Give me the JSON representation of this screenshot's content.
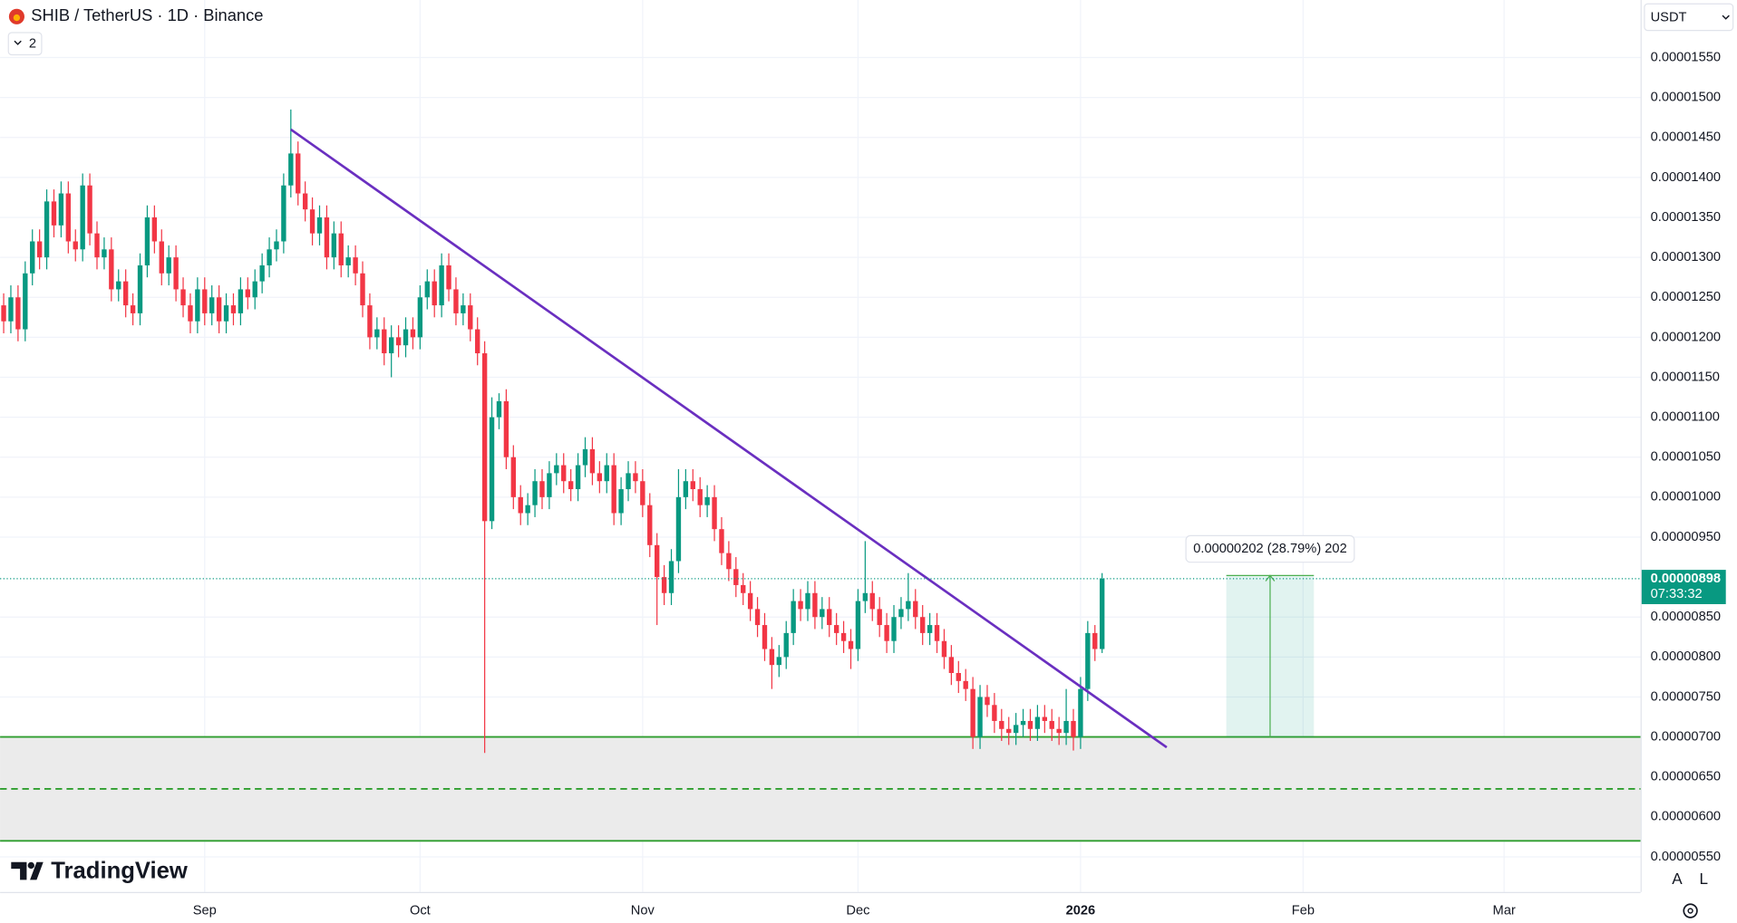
{
  "chart_data": {
    "type": "candlestick",
    "title": "SHIB / TetherUS · 1D · Binance",
    "up_color": "#089981",
    "down_color": "#f23645",
    "xlim": [
      -0.5,
      228
    ],
    "xticks": [
      {
        "value": 28,
        "label": "Sep"
      },
      {
        "value": 58,
        "label": "Oct"
      },
      {
        "value": 89,
        "label": "Nov"
      },
      {
        "value": 119,
        "label": "Dec"
      },
      {
        "value": 150,
        "label": "2026"
      },
      {
        "value": 181,
        "label": "Feb"
      },
      {
        "value": 209,
        "label": "Mar"
      }
    ],
    "ylim": [
      5.06e-06,
      1.622e-05
    ],
    "yticks": [
      {
        "value": 1.55e-05,
        "label": "0.00001550"
      },
      {
        "value": 1.5e-05,
        "label": "0.00001500"
      },
      {
        "value": 1.45e-05,
        "label": "0.00001450"
      },
      {
        "value": 1.4e-05,
        "label": "0.00001400"
      },
      {
        "value": 1.35e-05,
        "label": "0.00001350"
      },
      {
        "value": 1.3e-05,
        "label": "0.00001300"
      },
      {
        "value": 1.25e-05,
        "label": "0.00001250"
      },
      {
        "value": 1.2e-05,
        "label": "0.00001200"
      },
      {
        "value": 1.15e-05,
        "label": "0.00001150"
      },
      {
        "value": 1.1e-05,
        "label": "0.00001100"
      },
      {
        "value": 1.05e-05,
        "label": "0.00001050"
      },
      {
        "value": 1e-05,
        "label": "0.00001000"
      },
      {
        "value": 9.5e-06,
        "label": "0.00000950"
      },
      {
        "value": 8.5e-06,
        "label": "0.00000850"
      },
      {
        "value": 8e-06,
        "label": "0.00000800"
      },
      {
        "value": 7.5e-06,
        "label": "0.00000750"
      },
      {
        "value": 7e-06,
        "label": "0.00000700"
      },
      {
        "value": 6.5e-06,
        "label": "0.00000650"
      },
      {
        "value": 6e-06,
        "label": "0.00000600"
      },
      {
        "value": 5.5e-06,
        "label": "0.00000550"
      }
    ],
    "grid": true,
    "open": [
      1.24e-05,
      1.22e-05,
      1.25e-05,
      1.21e-05,
      1.28e-05,
      1.32e-05,
      1.3e-05,
      1.37e-05,
      1.34e-05,
      1.38e-05,
      1.32e-05,
      1.31e-05,
      1.39e-05,
      1.33e-05,
      1.3e-05,
      1.31e-05,
      1.26e-05,
      1.27e-05,
      1.24e-05,
      1.23e-05,
      1.29e-05,
      1.35e-05,
      1.32e-05,
      1.28e-05,
      1.3e-05,
      1.26e-05,
      1.24e-05,
      1.22e-05,
      1.26e-05,
      1.23e-05,
      1.25e-05,
      1.22e-05,
      1.24e-05,
      1.23e-05,
      1.26e-05,
      1.25e-05,
      1.27e-05,
      1.29e-05,
      1.31e-05,
      1.32e-05,
      1.39e-05,
      1.43e-05,
      1.38e-05,
      1.36e-05,
      1.33e-05,
      1.35e-05,
      1.3e-05,
      1.33e-05,
      1.29e-05,
      1.3e-05,
      1.28e-05,
      1.24e-05,
      1.2e-05,
      1.21e-05,
      1.18e-05,
      1.2e-05,
      1.19e-05,
      1.21e-05,
      1.2e-05,
      1.25e-05,
      1.27e-05,
      1.24e-05,
      1.29e-05,
      1.26e-05,
      1.23e-05,
      1.24e-05,
      1.21e-05,
      1.18e-05,
      9.7e-06,
      1.1e-05,
      1.12e-05,
      1.05e-05,
      1e-05,
      9.8e-06,
      9.9e-06,
      1.02e-05,
      1e-05,
      1.03e-05,
      1.04e-05,
      1.02e-05,
      1.01e-05,
      1.04e-05,
      1.06e-05,
      1.03e-05,
      1.02e-05,
      1.04e-05,
      9.8e-06,
      1.01e-05,
      1.03e-05,
      1.02e-05,
      9.9e-06,
      9.4e-06,
      9e-06,
      8.8e-06,
      9.2e-06,
      1e-05,
      1.02e-05,
      1.01e-05,
      9.9e-06,
      1e-05,
      9.6e-06,
      9.3e-06,
      9.1e-06,
      8.9e-06,
      8.8e-06,
      8.6e-06,
      8.4e-06,
      8.1e-06,
      7.9e-06,
      8e-06,
      8.3e-06,
      8.7e-06,
      8.6e-06,
      8.8e-06,
      8.5e-06,
      8.6e-06,
      8.4e-06,
      8.3e-06,
      8.2e-06,
      8.1e-06,
      8.7e-06,
      8.8e-06,
      8.6e-06,
      8.4e-06,
      8.2e-06,
      8.5e-06,
      8.6e-06,
      8.7e-06,
      8.5e-06,
      8.3e-06,
      8.4e-06,
      8.2e-06,
      8e-06,
      7.8e-06,
      7.7e-06,
      7.6e-06,
      7e-06,
      7.5e-06,
      7.4e-06,
      7.2e-06,
      7.1e-06,
      7.05e-06,
      7.15e-06,
      7.2e-06,
      7.1e-06,
      7.25e-06,
      7.2e-06,
      7.1e-06,
      7.05e-06,
      7.2e-06,
      7e-06,
      7.6e-06,
      8.3e-06,
      8.1e-06
    ],
    "high": [
      1.255e-05,
      1.265e-05,
      1.265e-05,
      1.295e-05,
      1.335e-05,
      1.335e-05,
      1.385e-05,
      1.385e-05,
      1.395e-05,
      1.395e-05,
      1.335e-05,
      1.405e-05,
      1.405e-05,
      1.345e-05,
      1.325e-05,
      1.325e-05,
      1.285e-05,
      1.285e-05,
      1.255e-05,
      1.305e-05,
      1.365e-05,
      1.365e-05,
      1.335e-05,
      1.315e-05,
      1.315e-05,
      1.275e-05,
      1.255e-05,
      1.275e-05,
      1.275e-05,
      1.265e-05,
      1.265e-05,
      1.255e-05,
      1.255e-05,
      1.275e-05,
      1.275e-05,
      1.285e-05,
      1.305e-05,
      1.325e-05,
      1.335e-05,
      1.405e-05,
      1.485e-05,
      1.445e-05,
      1.395e-05,
      1.375e-05,
      1.365e-05,
      1.365e-05,
      1.345e-05,
      1.345e-05,
      1.315e-05,
      1.315e-05,
      1.295e-05,
      1.255e-05,
      1.225e-05,
      1.225e-05,
      1.215e-05,
      1.215e-05,
      1.225e-05,
      1.225e-05,
      1.265e-05,
      1.285e-05,
      1.285e-05,
      1.305e-05,
      1.305e-05,
      1.275e-05,
      1.255e-05,
      1.255e-05,
      1.225e-05,
      1.195e-05,
      1.125e-05,
      1.13e-05,
      1.135e-05,
      1.065e-05,
      1.015e-05,
      1.005e-05,
      1.035e-05,
      1.035e-05,
      1.045e-05,
      1.055e-05,
      1.055e-05,
      1.035e-05,
      1.055e-05,
      1.075e-05,
      1.075e-05,
      1.045e-05,
      1.055e-05,
      1.055e-05,
      1.025e-05,
      1.045e-05,
      1.045e-05,
      1.035e-05,
      1.005e-05,
      9.55e-06,
      9.15e-06,
      9.35e-06,
      1.035e-05,
      1.035e-05,
      1.035e-05,
      1.025e-05,
      1.015e-05,
      1.015e-05,
      9.75e-06,
      9.45e-06,
      9.25e-06,
      9.05e-06,
      8.95e-06,
      8.75e-06,
      8.55e-06,
      8.25e-06,
      8.15e-06,
      8.45e-06,
      8.85e-06,
      8.85e-06,
      8.95e-06,
      8.95e-06,
      8.75e-06,
      8.75e-06,
      8.55e-06,
      8.45e-06,
      8.35e-06,
      8.85e-06,
      9.45e-06,
      8.95e-06,
      8.75e-06,
      8.55e-06,
      8.65e-06,
      8.75e-06,
      9.05e-06,
      8.85e-06,
      8.65e-06,
      8.55e-06,
      8.55e-06,
      8.35e-06,
      8.15e-06,
      7.95e-06,
      7.85e-06,
      7.75e-06,
      7.65e-06,
      7.65e-06,
      7.55e-06,
      7.35e-06,
      7.25e-06,
      7.3e-06,
      7.35e-06,
      7.35e-06,
      7.4e-06,
      7.4e-06,
      7.35e-06,
      7.25e-06,
      7.6e-06,
      7.35e-06,
      7.75e-06,
      8.45e-06,
      8.4e-06,
      9.05e-06
    ],
    "low": [
      1.205e-05,
      1.205e-05,
      1.195e-05,
      1.195e-05,
      1.265e-05,
      1.285e-05,
      1.285e-05,
      1.325e-05,
      1.325e-05,
      1.305e-05,
      1.295e-05,
      1.295e-05,
      1.315e-05,
      1.285e-05,
      1.285e-05,
      1.245e-05,
      1.245e-05,
      1.225e-05,
      1.215e-05,
      1.215e-05,
      1.275e-05,
      1.305e-05,
      1.265e-05,
      1.265e-05,
      1.245e-05,
      1.225e-05,
      1.205e-05,
      1.205e-05,
      1.215e-05,
      1.215e-05,
      1.205e-05,
      1.205e-05,
      1.215e-05,
      1.215e-05,
      1.235e-05,
      1.235e-05,
      1.255e-05,
      1.275e-05,
      1.295e-05,
      1.305e-05,
      1.375e-05,
      1.365e-05,
      1.345e-05,
      1.315e-05,
      1.315e-05,
      1.285e-05,
      1.285e-05,
      1.275e-05,
      1.275e-05,
      1.265e-05,
      1.225e-05,
      1.185e-05,
      1.185e-05,
      1.165e-05,
      1.15e-05,
      1.175e-05,
      1.175e-05,
      1.185e-05,
      1.185e-05,
      1.235e-05,
      1.225e-05,
      1.225e-05,
      1.245e-05,
      1.215e-05,
      1.215e-05,
      1.195e-05,
      1.165e-05,
      6.8e-06,
      9.6e-06,
      1.085e-05,
      1.035e-05,
      9.85e-06,
      9.65e-06,
      9.65e-06,
      9.75e-06,
      9.85e-06,
      9.85e-06,
      1.015e-05,
      1.005e-05,
      9.95e-06,
      9.95e-06,
      1.025e-05,
      1.015e-05,
      1.005e-05,
      1.005e-05,
      9.65e-06,
      9.65e-06,
      9.95e-06,
      1.005e-05,
      9.75e-06,
      9.25e-06,
      8.4e-06,
      8.65e-06,
      8.65e-06,
      9.05e-06,
      9.85e-06,
      9.95e-06,
      9.75e-06,
      9.75e-06,
      9.45e-06,
      9.15e-06,
      8.95e-06,
      8.75e-06,
      8.65e-06,
      8.45e-06,
      8.25e-06,
      7.95e-06,
      7.6e-06,
      7.75e-06,
      7.85e-06,
      8.15e-06,
      8.45e-06,
      8.45e-06,
      8.35e-06,
      8.35e-06,
      8.25e-06,
      8.15e-06,
      8.05e-06,
      7.85e-06,
      7.95e-06,
      8.55e-06,
      8.45e-06,
      8.25e-06,
      8.05e-06,
      8.05e-06,
      8.35e-06,
      8.45e-06,
      8.35e-06,
      8.15e-06,
      8.15e-06,
      8.05e-06,
      7.85e-06,
      7.65e-06,
      7.55e-06,
      7.45e-06,
      6.85e-06,
      6.85e-06,
      7.25e-06,
      7.05e-06,
      6.95e-06,
      6.9e-06,
      6.9e-06,
      7e-06,
      6.95e-06,
      6.95e-06,
      7.05e-06,
      6.95e-06,
      6.9e-06,
      6.9e-06,
      6.83e-06,
      6.85e-06,
      7.45e-06,
      7.95e-06,
      8.05e-06
    ],
    "close": [
      1.22e-05,
      1.25e-05,
      1.21e-05,
      1.28e-05,
      1.32e-05,
      1.3e-05,
      1.37e-05,
      1.34e-05,
      1.38e-05,
      1.32e-05,
      1.31e-05,
      1.39e-05,
      1.33e-05,
      1.3e-05,
      1.31e-05,
      1.26e-05,
      1.27e-05,
      1.24e-05,
      1.23e-05,
      1.29e-05,
      1.35e-05,
      1.32e-05,
      1.28e-05,
      1.3e-05,
      1.26e-05,
      1.24e-05,
      1.22e-05,
      1.26e-05,
      1.23e-05,
      1.25e-05,
      1.22e-05,
      1.24e-05,
      1.23e-05,
      1.26e-05,
      1.25e-05,
      1.27e-05,
      1.29e-05,
      1.31e-05,
      1.32e-05,
      1.39e-05,
      1.43e-05,
      1.38e-05,
      1.36e-05,
      1.33e-05,
      1.35e-05,
      1.3e-05,
      1.33e-05,
      1.29e-05,
      1.3e-05,
      1.28e-05,
      1.24e-05,
      1.2e-05,
      1.21e-05,
      1.18e-05,
      1.2e-05,
      1.19e-05,
      1.21e-05,
      1.2e-05,
      1.25e-05,
      1.27e-05,
      1.24e-05,
      1.29e-05,
      1.26e-05,
      1.23e-05,
      1.24e-05,
      1.21e-05,
      1.18e-05,
      9.7e-06,
      1.1e-05,
      1.12e-05,
      1.05e-05,
      1e-05,
      9.8e-06,
      9.9e-06,
      1.02e-05,
      1e-05,
      1.03e-05,
      1.04e-05,
      1.02e-05,
      1.01e-05,
      1.04e-05,
      1.06e-05,
      1.03e-05,
      1.02e-05,
      1.04e-05,
      9.8e-06,
      1.01e-05,
      1.03e-05,
      1.02e-05,
      9.9e-06,
      9.4e-06,
      9e-06,
      8.8e-06,
      9.2e-06,
      1e-05,
      1.02e-05,
      1.01e-05,
      9.9e-06,
      1e-05,
      9.6e-06,
      9.3e-06,
      9.1e-06,
      8.9e-06,
      8.8e-06,
      8.6e-06,
      8.4e-06,
      8.1e-06,
      7.9e-06,
      8e-06,
      8.3e-06,
      8.7e-06,
      8.6e-06,
      8.8e-06,
      8.5e-06,
      8.6e-06,
      8.4e-06,
      8.3e-06,
      8.2e-06,
      8.1e-06,
      8.7e-06,
      8.8e-06,
      8.6e-06,
      8.4e-06,
      8.2e-06,
      8.5e-06,
      8.6e-06,
      8.7e-06,
      8.5e-06,
      8.3e-06,
      8.4e-06,
      8.2e-06,
      8e-06,
      7.8e-06,
      7.7e-06,
      7.6e-06,
      7e-06,
      7.5e-06,
      7.4e-06,
      7.2e-06,
      7.1e-06,
      7.05e-06,
      7.15e-06,
      7.2e-06,
      7.1e-06,
      7.25e-06,
      7.2e-06,
      7.1e-06,
      7.05e-06,
      7.2e-06,
      7e-06,
      7.6e-06,
      8.3e-06,
      8.1e-06,
      8.98e-06
    ],
    "last_price": {
      "value": 8.98e-06,
      "label": "0.00000898",
      "countdown": "07:33:32"
    },
    "trendline": {
      "x": [
        40,
        162
      ],
      "y": [
        1.46e-05,
        6.87e-06
      ],
      "color": "#6a2fc0"
    },
    "levels": [
      {
        "value": 7e-06,
        "style": "solid"
      },
      {
        "value": 6.35e-06,
        "style": "dashed"
      },
      {
        "value": 5.7e-06,
        "style": "solid"
      }
    ],
    "level_color": "#2e9e2e",
    "zone": [
      5.7e-06,
      7e-06
    ],
    "measure": {
      "x": [
        170.3,
        182.5
      ],
      "y": [
        7e-06,
        9.02e-06
      ],
      "label": "0.00000202 (28.79%) 202"
    }
  },
  "ui": {
    "indicator_count": "2",
    "currency": "USDT",
    "brand": "TradingView",
    "scale_buttons": [
      "A",
      "L"
    ]
  }
}
